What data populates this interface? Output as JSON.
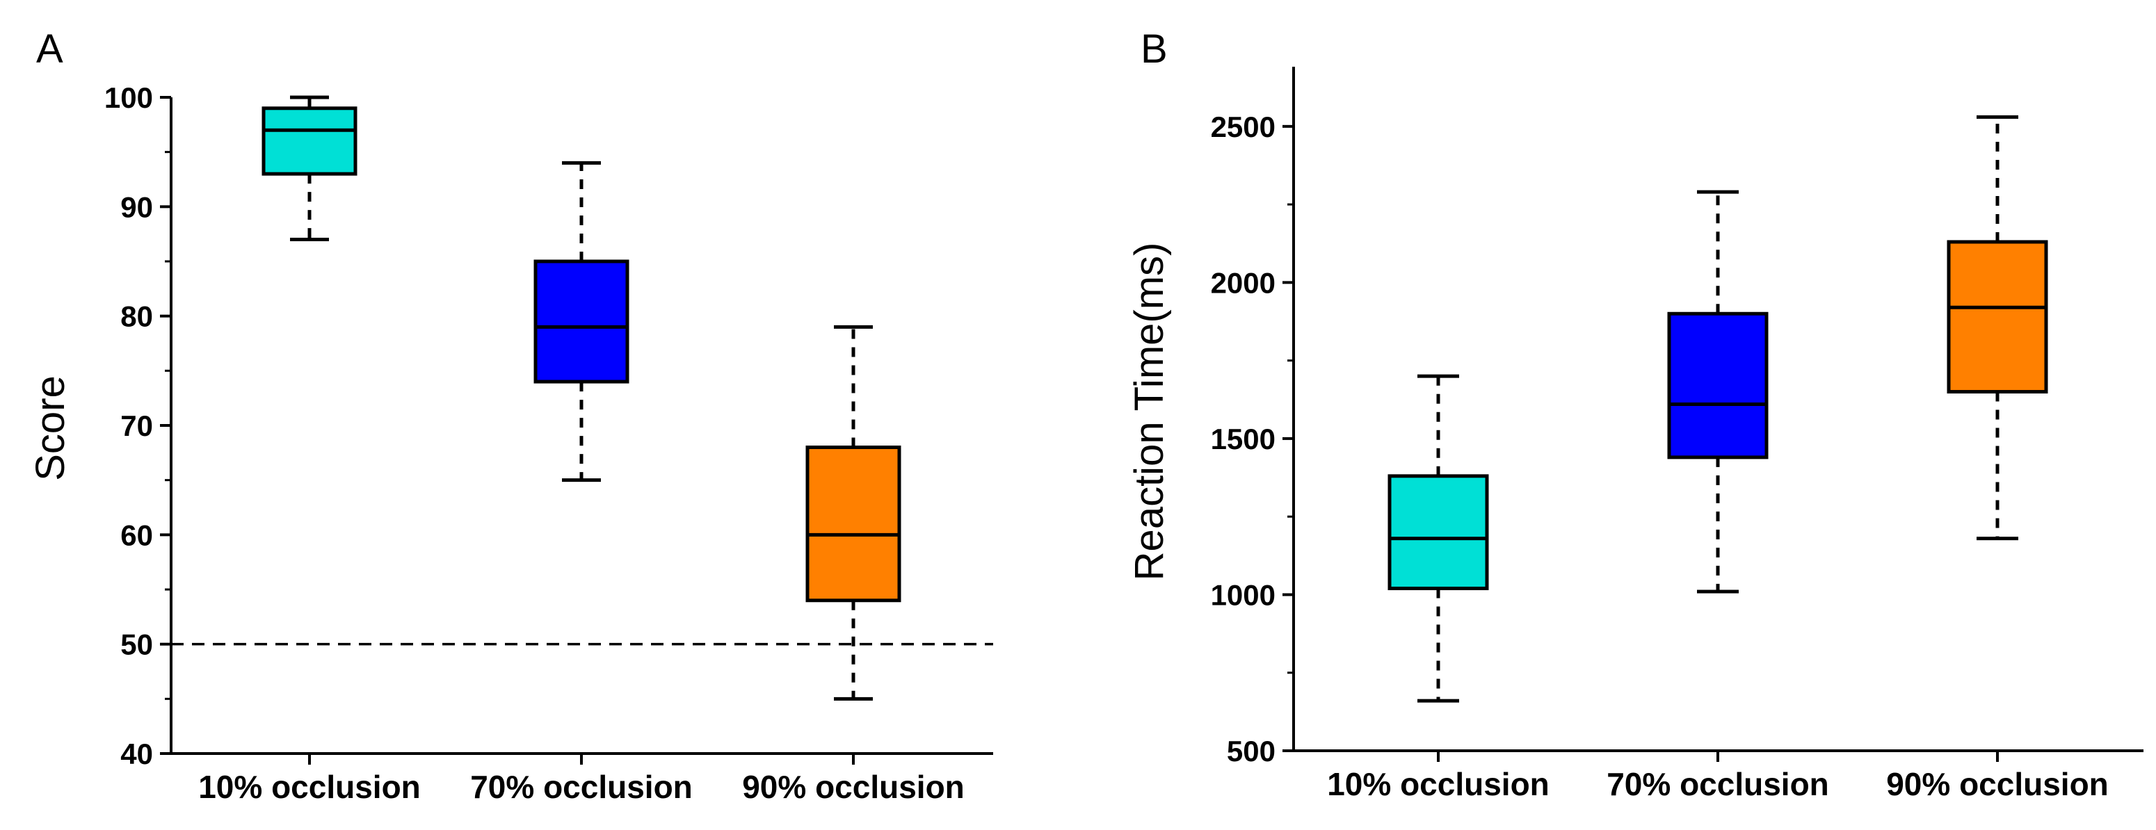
{
  "chart_data": [
    {
      "type": "box",
      "panel_label": "A",
      "ylabel": "Score",
      "ylim": [
        40,
        100
      ],
      "yticks": [
        40,
        50,
        60,
        70,
        80,
        90,
        100
      ],
      "grid": false,
      "reference_line": {
        "y": 50,
        "style": "dashed"
      },
      "categories": [
        "10% occlusion",
        "70% occlusion",
        "90% occlusion"
      ],
      "boxes": [
        {
          "name": "10% occlusion",
          "whisker_low": 87,
          "q1": 93,
          "median": 97,
          "q3": 99,
          "whisker_high": 100,
          "color": "#00e0d6"
        },
        {
          "name": "70% occlusion",
          "whisker_low": 65,
          "q1": 74,
          "median": 79,
          "q3": 85,
          "whisker_high": 94,
          "color": "#0000ff"
        },
        {
          "name": "90% occlusion",
          "whisker_low": 45,
          "q1": 54,
          "median": 60,
          "q3": 68,
          "whisker_high": 79,
          "color": "#ff8000"
        }
      ]
    },
    {
      "type": "box",
      "panel_label": "B",
      "ylabel": "Reaction Time(ms)",
      "ylim": [
        500,
        2700
      ],
      "yticks": [
        500,
        1000,
        1500,
        2000,
        2500
      ],
      "grid": false,
      "categories": [
        "10% occlusion",
        "70% occlusion",
        "90% occlusion"
      ],
      "boxes": [
        {
          "name": "10% occlusion",
          "whisker_low": 660,
          "q1": 1020,
          "median": 1180,
          "q3": 1380,
          "whisker_high": 1700,
          "color": "#00e0d6"
        },
        {
          "name": "70% occlusion",
          "whisker_low": 1010,
          "q1": 1440,
          "median": 1610,
          "q3": 1900,
          "whisker_high": 2290,
          "color": "#0000ff"
        },
        {
          "name": "90% occlusion",
          "whisker_low": 1180,
          "q1": 1650,
          "median": 1920,
          "q3": 2130,
          "whisker_high": 2530,
          "color": "#ff8000"
        }
      ]
    }
  ]
}
